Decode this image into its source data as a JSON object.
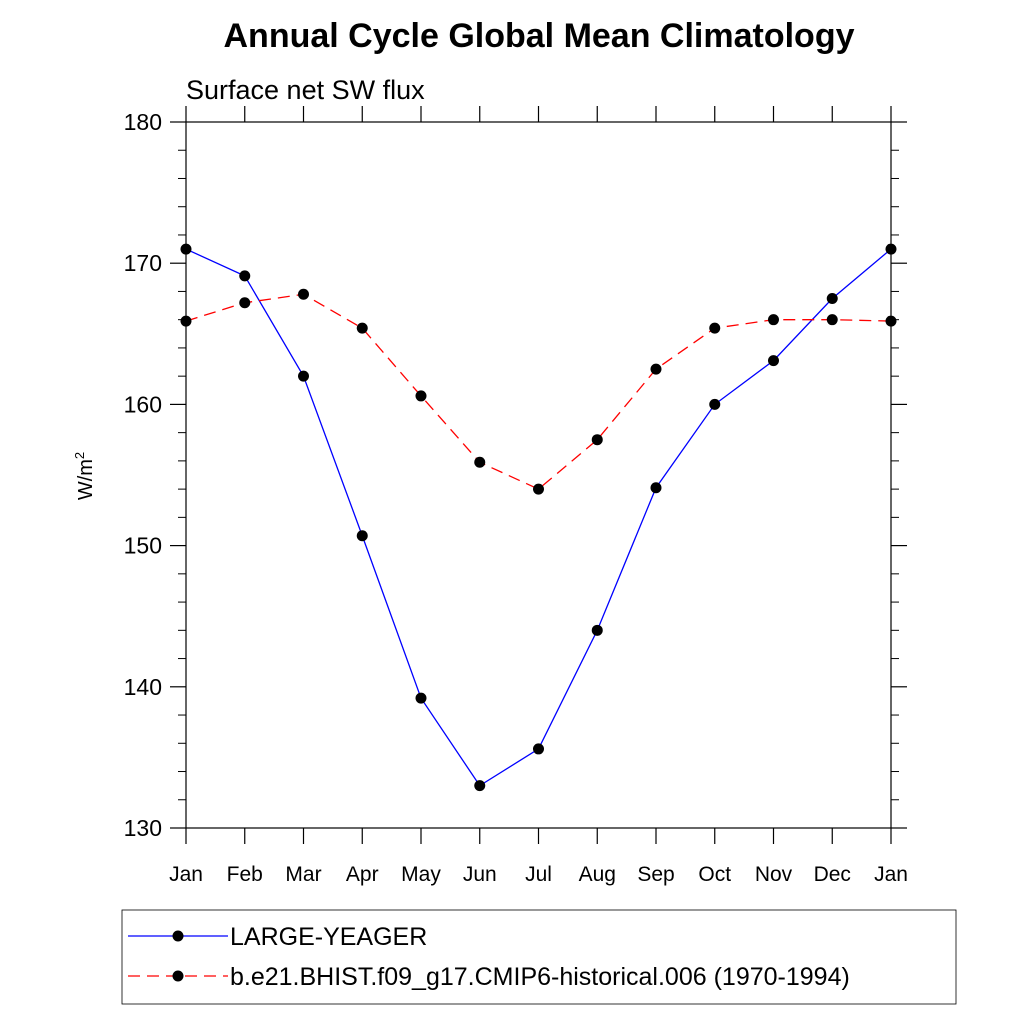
{
  "chart_data": {
    "type": "line",
    "title": "Annual Cycle Global Mean Climatology",
    "subtitle": "Surface net SW flux",
    "ylabel": "W/m",
    "ylabel_superscript": "2",
    "categories": [
      "Jan",
      "Feb",
      "Mar",
      "Apr",
      "May",
      "Jun",
      "Jul",
      "Aug",
      "Sep",
      "Oct",
      "Nov",
      "Dec",
      "Jan"
    ],
    "ylim": [
      130,
      180
    ],
    "yticks": [
      130,
      140,
      150,
      160,
      170,
      180
    ],
    "y_minor_step": 2,
    "legend_position": "bottom",
    "series": [
      {
        "name": "LARGE-YEAGER",
        "color": "#0000ff",
        "dash": "solid",
        "values": [
          171.0,
          169.1,
          162.0,
          150.7,
          139.2,
          133.0,
          135.6,
          144.0,
          154.1,
          160.0,
          163.1,
          167.5,
          171.0
        ]
      },
      {
        "name": "b.e21.BHIST.f09_g17.CMIP6-historical.006 (1970-1994)",
        "color": "#ff0000",
        "dash": "dashed",
        "values": [
          165.9,
          167.2,
          167.8,
          165.4,
          160.6,
          155.9,
          154.0,
          157.5,
          162.5,
          165.4,
          166.0,
          166.0,
          165.9
        ]
      }
    ]
  }
}
